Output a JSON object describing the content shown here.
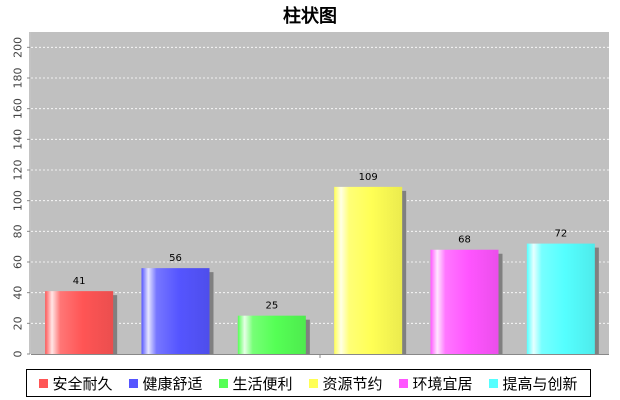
{
  "chart_data": {
    "type": "bar",
    "title": "柱状图",
    "categories": [
      "安全耐久",
      "健康舒适",
      "生活便利",
      "资源节约",
      "环境宜居",
      "提高与创新"
    ],
    "values": [
      41,
      56,
      25,
      109,
      68,
      72
    ],
    "colors": [
      "#ff5555",
      "#5555ff",
      "#55ff55",
      "#ffff55",
      "#ff55ff",
      "#55ffff"
    ],
    "xlabel": "",
    "ylabel": "",
    "ylim": [
      0,
      210
    ],
    "yticks": [
      0,
      20,
      40,
      60,
      80,
      100,
      120,
      140,
      160,
      180,
      200
    ],
    "grid": true,
    "legend_position": "bottom",
    "plot_background": "#c0c0c0"
  }
}
